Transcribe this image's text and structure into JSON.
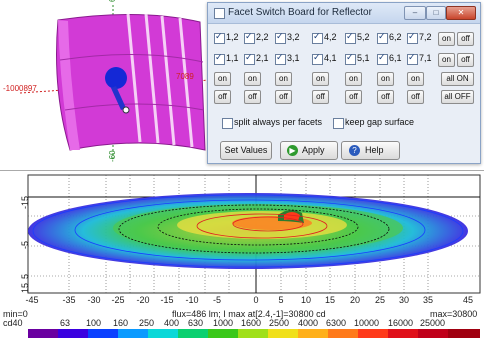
{
  "view3d": {
    "axis_top": "60",
    "axis_bottom": "-60",
    "axis_left": "-1000897",
    "axis_right": "7089"
  },
  "dialog": {
    "title": "Facet Switch Board for Reflector",
    "facets_row1": [
      "1,2",
      "2,2",
      "3,2",
      "4,2",
      "5,2",
      "6,2",
      "7,2"
    ],
    "facets_row2": [
      "1,1",
      "2,1",
      "3,1",
      "4,1",
      "5,1",
      "6,1",
      "7,1"
    ],
    "on_label": "on",
    "off_label": "off",
    "all_on_label": "all ON",
    "all_off_label": "all OFF",
    "split_label": "split always per facets",
    "gap_label": "keep gap surface",
    "set_values_label": "Set Values",
    "apply_label": "Apply",
    "help_label": "Help"
  },
  "plot": {
    "y_ticks": [
      "-15",
      "-5",
      "5",
      "15"
    ],
    "x_ticks": [
      "-45",
      "-35",
      "-30",
      "-25",
      "-20",
      "-15",
      "-10",
      "-5",
      "0",
      "5",
      "10",
      "15",
      "20",
      "25",
      "30",
      "35",
      "45"
    ],
    "min_text": "min=0",
    "flux_text": "flux=486 lm; I max at[2.4,-1]=30800 cd",
    "max_text": "max=30800",
    "legend_unit": "cd40",
    "legend_ticks": [
      "63",
      "100",
      "160",
      "250",
      "400",
      "630",
      "1000",
      "1600",
      "2500",
      "4000",
      "6300",
      "10000",
      "16000",
      "25000"
    ]
  },
  "colors": {
    "reflector": "#d23ad6",
    "dialog_bg": "#e9eef6",
    "isoline_outer": "#1a3cff",
    "isoline_inner": "#e02020"
  }
}
